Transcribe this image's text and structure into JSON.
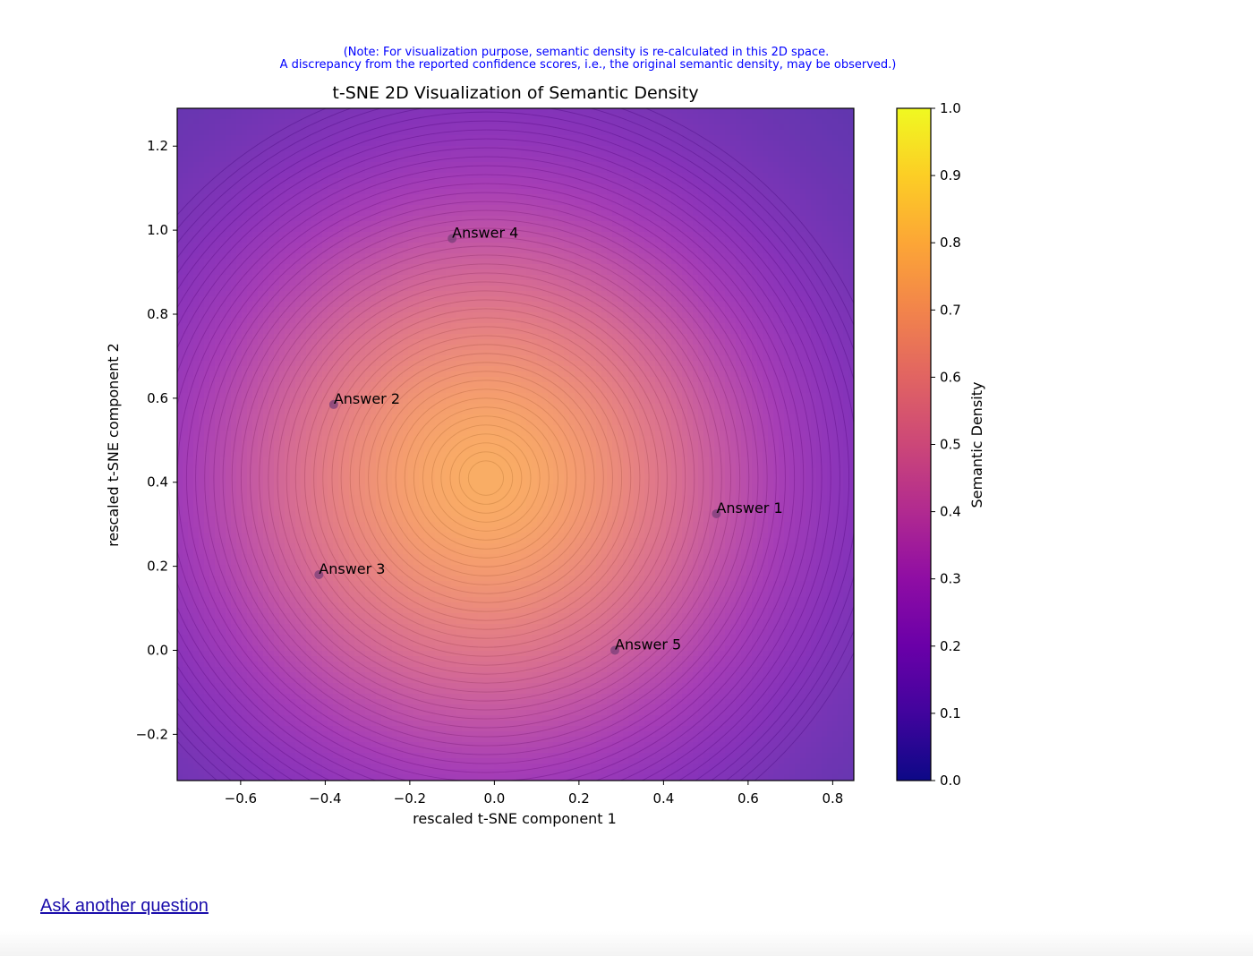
{
  "chart_data": {
    "type": "heatmap",
    "note": [
      "(Note: For visualization purpose, semantic density is re-calculated in this 2D space.",
      "A discrepancy from the reported confidence scores, i.e., the original semantic density, may be observed.)"
    ],
    "title": "t-SNE 2D Visualization of Semantic Density",
    "xlabel": "rescaled t-SNE component 1",
    "ylabel": "rescaled t-SNE component 2",
    "xlim": [
      -0.75,
      0.85
    ],
    "ylim": [
      -0.31,
      1.29
    ],
    "xticks": [
      -0.6,
      -0.4,
      -0.2,
      0.0,
      0.2,
      0.4,
      0.6,
      0.8
    ],
    "xtick_labels": [
      "−0.6",
      "−0.4",
      "−0.2",
      "0.0",
      "0.2",
      "0.4",
      "0.6",
      "0.8"
    ],
    "yticks": [
      -0.2,
      0.0,
      0.2,
      0.4,
      0.6,
      0.8,
      1.0,
      1.2
    ],
    "ytick_labels": [
      "−0.2",
      "0.0",
      "0.2",
      "0.4",
      "0.6",
      "0.8",
      "1.0",
      "1.2"
    ],
    "colormap": "plasma",
    "colorbar": {
      "label": "Semantic Density",
      "range": [
        0.0,
        1.0
      ],
      "ticks": [
        0.0,
        0.1,
        0.2,
        0.3,
        0.4,
        0.5,
        0.6,
        0.7,
        0.8,
        0.9,
        1.0
      ],
      "tick_labels": [
        "0.0",
        "0.1",
        "0.2",
        "0.3",
        "0.4",
        "0.5",
        "0.6",
        "0.7",
        "0.8",
        "0.9",
        "1.0"
      ]
    },
    "density_peak": {
      "x": -0.02,
      "y": 0.41,
      "value": 0.76
    },
    "points": [
      {
        "label": "Answer 1",
        "x": 0.525,
        "y": 0.325
      },
      {
        "label": "Answer 2",
        "x": -0.38,
        "y": 0.585
      },
      {
        "label": "Answer 3",
        "x": -0.415,
        "y": 0.18
      },
      {
        "label": "Answer 4",
        "x": -0.1,
        "y": 0.98
      },
      {
        "label": "Answer 5",
        "x": 0.285,
        "y": 0.0
      }
    ],
    "colors": {
      "note": "#0000ff",
      "point": "#7a3f7a"
    }
  },
  "link": {
    "label": "Ask another question"
  }
}
